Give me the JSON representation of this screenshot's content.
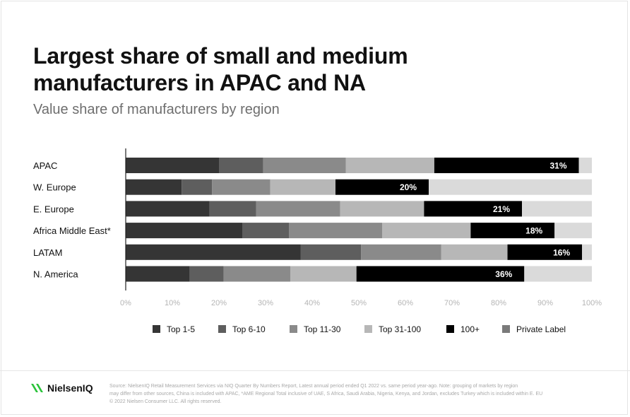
{
  "title": "Largest share of small and medium manufacturers in APAC and NA",
  "subtitle": "Value share of manufacturers by region",
  "colors": {
    "top_1_5": "#353535",
    "top_6_10": "#5e5e5e",
    "top_11_30": "#8a8a8a",
    "top_31_100": "#b7b7b7",
    "plus_100": "#000000",
    "private_label": "#dadada",
    "logo_green": "#2ac33a"
  },
  "chart_data": {
    "type": "bar",
    "orientation": "horizontal",
    "stacked": true,
    "categories": [
      "APAC",
      "W. Europe",
      "E. Europe",
      "Africa Middle East*",
      "LATAM",
      "N. America"
    ],
    "series": [
      {
        "name": "Top 1-5",
        "values": [
          20,
          12,
          18,
          25,
          37.5,
          13.7
        ]
      },
      {
        "name": "Top 6-10",
        "values": [
          9.5,
          6.5,
          10,
          10,
          13,
          7.3
        ]
      },
      {
        "name": "Top 11-30",
        "values": [
          17.7,
          12.5,
          18,
          20,
          17.2,
          14.3
        ]
      },
      {
        "name": "Top 31-100",
        "values": [
          19,
          14,
          18,
          19,
          14.2,
          14.2
        ]
      },
      {
        "name": "100+",
        "values": [
          31,
          20,
          21,
          18,
          16,
          36
        ]
      },
      {
        "name": "Private Label",
        "values": [
          2.8,
          35,
          15,
          8,
          2.1,
          14.5
        ]
      }
    ],
    "data_labels": [
      "31%",
      "20%",
      "21%",
      "18%",
      "16%",
      "36%"
    ],
    "data_label_series": "100+",
    "xlim": [
      0,
      100
    ],
    "x_ticks": [
      "0%",
      "10%",
      "20%",
      "30%",
      "40%",
      "50%",
      "60%",
      "70%",
      "80%",
      "90%",
      "100%"
    ],
    "legend_position": "bottom",
    "grid": false
  },
  "footer": {
    "logo_text": "NielsenIQ",
    "source_lines": [
      "Source: NielsenIQ Retail Measurement Services via NIQ Quarter By Numbers Report, Latest annual period ended Q1 2022 vs. same period year-ago. Note: grouping of markets by region",
      "may differ from other sources, China is included with APAC, *AME Regional Total inclusive of UAE, S Africa, Saudi Arabia, Nigeria, Kenya, and Jordan, excludes Turkey which is included within E. EU",
      "© 2022 Nielsen Consumer LLC. All rights reserved."
    ]
  }
}
